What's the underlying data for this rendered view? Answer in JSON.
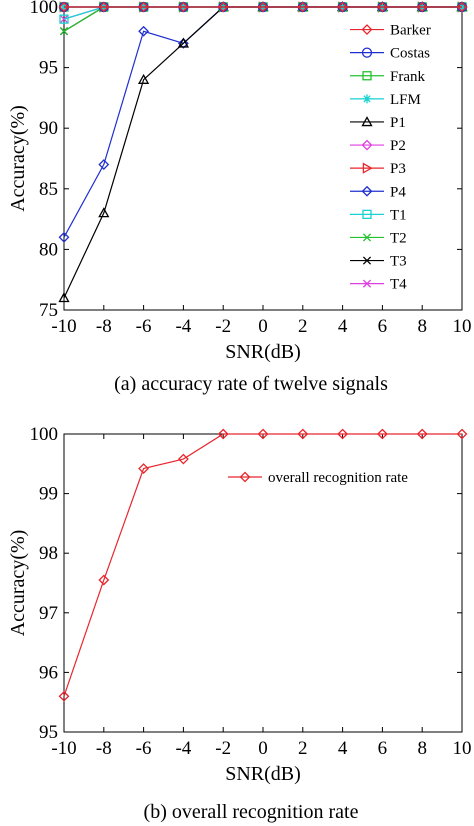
{
  "chart_data": [
    {
      "type": "line",
      "caption": "(a) accuracy rate of twelve signals",
      "xlabel": "SNR(dB)",
      "ylabel": "Accuracy(%)",
      "xlim": [
        -10,
        10
      ],
      "ylim": [
        75,
        100
      ],
      "xticks": [
        -10,
        -8,
        -6,
        -4,
        -2,
        0,
        2,
        4,
        6,
        8,
        10
      ],
      "yticks": [
        75,
        80,
        85,
        90,
        95,
        100
      ],
      "grid": false,
      "legend_position": "right",
      "x": [
        -10,
        -8,
        -6,
        -4,
        -2,
        0,
        2,
        4,
        6,
        8,
        10
      ],
      "series": [
        {
          "name": "Barker",
          "color": "#e8262d",
          "marker": "diamond",
          "values": [
            100,
            100,
            100,
            100,
            100,
            100,
            100,
            100,
            100,
            100,
            100
          ]
        },
        {
          "name": "Costas",
          "color": "#1f2fd1",
          "marker": "circle",
          "values": [
            100,
            100,
            100,
            100,
            100,
            100,
            100,
            100,
            100,
            100,
            100
          ]
        },
        {
          "name": "Frank",
          "color": "#22c22e",
          "marker": "square",
          "values": [
            100,
            100,
            100,
            100,
            100,
            100,
            100,
            100,
            100,
            100,
            100
          ]
        },
        {
          "name": "LFM",
          "color": "#1ad1d1",
          "marker": "asterisk",
          "values": [
            100,
            100,
            100,
            100,
            100,
            100,
            100,
            100,
            100,
            100,
            100
          ]
        },
        {
          "name": "P1",
          "color": "#000000",
          "marker": "triangle-up",
          "values": [
            76,
            83,
            94,
            97,
            100,
            100,
            100,
            100,
            100,
            100,
            100
          ]
        },
        {
          "name": "P2",
          "color": "#e03fe0",
          "marker": "diamond",
          "values": [
            100,
            100,
            100,
            100,
            100,
            100,
            100,
            100,
            100,
            100,
            100
          ]
        },
        {
          "name": "P3",
          "color": "#e8262d",
          "marker": "triangle-right",
          "values": [
            100,
            100,
            100,
            100,
            100,
            100,
            100,
            100,
            100,
            100,
            100
          ]
        },
        {
          "name": "P4",
          "color": "#1f2fd1",
          "marker": "diamond",
          "values": [
            81,
            87,
            98,
            97,
            100,
            100,
            100,
            100,
            100,
            100,
            100
          ]
        },
        {
          "name": "T1",
          "color": "#1ad1d1",
          "marker": "square",
          "values": [
            99,
            100,
            100,
            100,
            100,
            100,
            100,
            100,
            100,
            100,
            100
          ]
        },
        {
          "name": "T2",
          "color": "#22c22e",
          "marker": "x",
          "values": [
            98,
            100,
            100,
            100,
            100,
            100,
            100,
            100,
            100,
            100,
            100
          ]
        },
        {
          "name": "T3",
          "color": "#000000",
          "marker": "x",
          "values": [
            98,
            100,
            100,
            100,
            100,
            100,
            100,
            100,
            100,
            100,
            100
          ]
        },
        {
          "name": "T4",
          "color": "#e03fe0",
          "marker": "x",
          "values": [
            99,
            100,
            100,
            100,
            100,
            100,
            100,
            100,
            100,
            100,
            100
          ]
        }
      ]
    },
    {
      "type": "line",
      "caption": "(b) overall recognition rate",
      "xlabel": "SNR(dB)",
      "ylabel": "Accuracy(%)",
      "xlim": [
        -10,
        10
      ],
      "ylim": [
        95,
        100
      ],
      "xticks": [
        -10,
        -8,
        -6,
        -4,
        -2,
        0,
        2,
        4,
        6,
        8,
        10
      ],
      "yticks": [
        95,
        96,
        97,
        98,
        99,
        100
      ],
      "grid": false,
      "legend_position": "top-right",
      "x": [
        -10,
        -8,
        -6,
        -4,
        -2,
        0,
        2,
        4,
        6,
        8,
        10
      ],
      "series": [
        {
          "name": "overall recognition rate",
          "color": "#e8262d",
          "marker": "diamond",
          "values": [
            95.6,
            97.55,
            99.42,
            99.58,
            100,
            100,
            100,
            100,
            100,
            100,
            100
          ]
        }
      ]
    }
  ]
}
